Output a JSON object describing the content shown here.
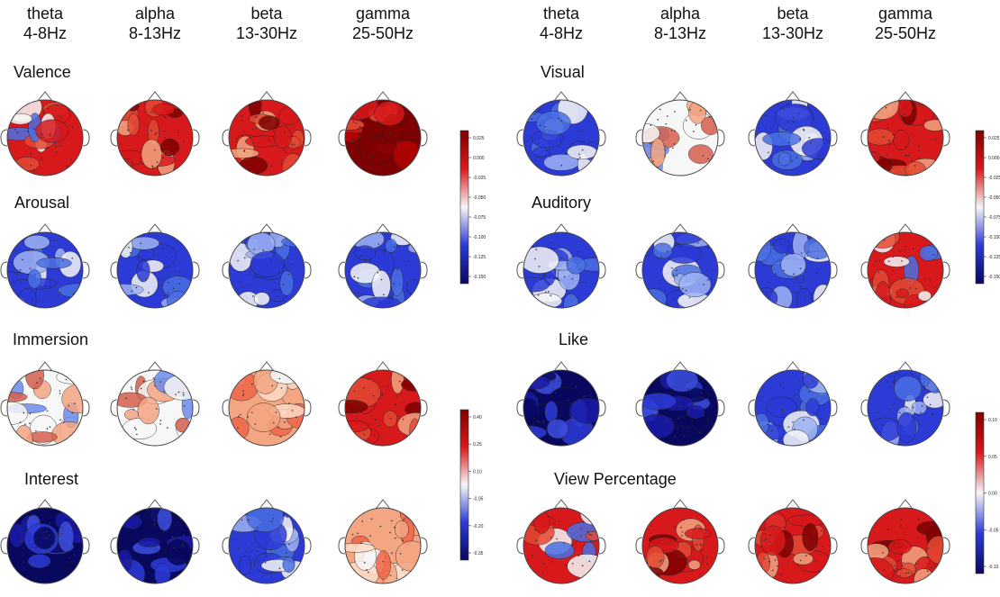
{
  "bands": [
    {
      "name": "theta",
      "range": "4-8Hz"
    },
    {
      "name": "alpha",
      "range": "8-13Hz"
    },
    {
      "name": "beta",
      "range": "13-30Hz"
    },
    {
      "name": "gamma",
      "range": "25-50Hz"
    }
  ],
  "panels": [
    {
      "rows": [
        {
          "title": "Valence",
          "maps": [
            "mixed-red",
            "red",
            "red",
            "dark-red"
          ]
        },
        {
          "title": "Arousal",
          "maps": [
            "blue",
            "blue",
            "blue",
            "blue"
          ]
        },
        {
          "title": "Immersion",
          "maps": [
            "mixed",
            "mixed",
            "light-red",
            "red"
          ]
        },
        {
          "title": "Interest",
          "maps": [
            "dark-blue",
            "dark-blue",
            "blue",
            "light-red"
          ]
        }
      ],
      "colorbars": [
        {
          "rows": "Valence-Arousal",
          "ticks": [
            "0.025",
            "0.000",
            "-0.025",
            "-0.050",
            "-0.075",
            "-0.100",
            "-0.125",
            "-0.150"
          ]
        },
        {
          "rows": "Immersion-Interest",
          "ticks": [
            "0.40",
            "0.25",
            "0.10",
            "-0.05",
            "-0.20",
            "-0.35"
          ]
        }
      ]
    },
    {
      "rows": [
        {
          "title": "Visual",
          "maps": [
            "blue",
            "mixed",
            "blue",
            "red"
          ]
        },
        {
          "title": "Auditory",
          "maps": [
            "blue",
            "blue",
            "blue",
            "mixed-red"
          ]
        },
        {
          "title": "Like",
          "maps": [
            "dark-blue",
            "dark-blue",
            "blue",
            "blue"
          ]
        },
        {
          "title": "View Percentage",
          "maps": [
            "mixed-red",
            "red",
            "red",
            "red"
          ]
        }
      ],
      "colorbars": [
        {
          "rows": "Visual-Auditory",
          "ticks": [
            "0.025",
            "0.000",
            "-0.025",
            "-0.050",
            "-0.075",
            "-0.100",
            "-0.125",
            "-0.150"
          ]
        },
        {
          "rows": "Like-ViewPercentage",
          "ticks": [
            "0.10",
            "0.05",
            "0.00",
            "-0.05",
            "-0.10"
          ]
        }
      ]
    }
  ],
  "colors": {
    "dark_red": "#7f0000",
    "red": "#d7191c",
    "white": "#f7f7f7",
    "blue": "#2c3bd6",
    "dark_blue": "#08085e"
  }
}
